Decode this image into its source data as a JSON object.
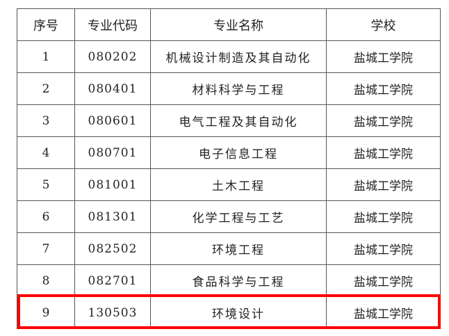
{
  "table": {
    "headers": [
      "序号",
      "专业代码",
      "专业名称",
      "学校"
    ],
    "rows": [
      [
        "1",
        "080202",
        "机械设计制造及其自动化",
        "盐城工学院"
      ],
      [
        "2",
        "080401",
        "材料科学与工程",
        "盐城工学院"
      ],
      [
        "3",
        "080601",
        "电气工程及其自动化",
        "盐城工学院"
      ],
      [
        "4",
        "080701",
        "电子信息工程",
        "盐城工学院"
      ],
      [
        "5",
        "081001",
        "土木工程",
        "盐城工学院"
      ],
      [
        "6",
        "081301",
        "化学工程与工艺",
        "盐城工学院"
      ],
      [
        "7",
        "082502",
        "环境工程",
        "盐城工学院"
      ],
      [
        "8",
        "082701",
        "食品科学与工程",
        "盐城工学院"
      ],
      [
        "9",
        "130503",
        "环境设计",
        "盐城工学院"
      ]
    ],
    "highlight_color": "#ff0000",
    "highlighted_row": 9
  }
}
